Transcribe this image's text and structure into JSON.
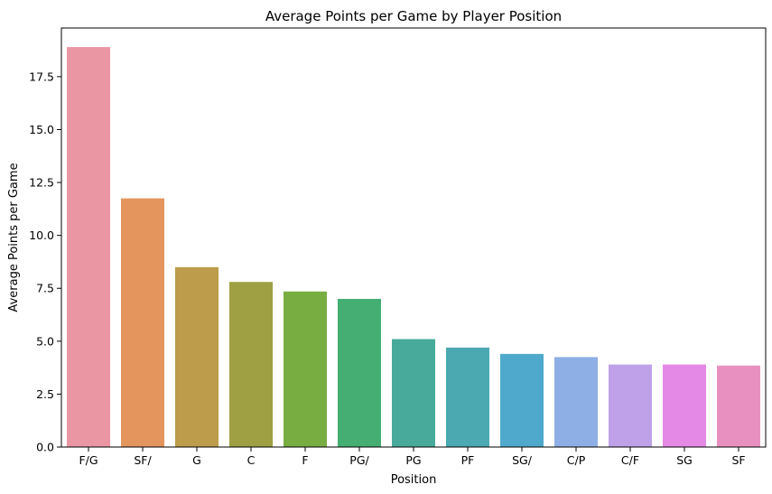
{
  "chart_data": {
    "type": "bar",
    "title": "Average Points per Game by Player Position",
    "xlabel": "Position",
    "ylabel": "Average Points per Game",
    "categories": [
      "F/G",
      "SF/",
      "G",
      "C",
      "F",
      "PG/",
      "PG",
      "PF",
      "SG/",
      "C/P",
      "C/F",
      "SG",
      "SF"
    ],
    "values": [
      18.9,
      11.75,
      8.5,
      7.8,
      7.35,
      7.0,
      5.1,
      4.7,
      4.4,
      4.25,
      3.9,
      3.9,
      3.85
    ],
    "colors": [
      "#ea96a3",
      "#e4955e",
      "#bd9d4b",
      "#9fa043",
      "#78ad42",
      "#45ae73",
      "#48aa9b",
      "#4aa9b1",
      "#4fa9cc",
      "#8eafe6",
      "#bfa1e9",
      "#e589e6",
      "#e891c1"
    ],
    "ylim": [
      0,
      19.8
    ],
    "yticks": [
      "0.0",
      "2.5",
      "5.0",
      "7.5",
      "10.0",
      "12.5",
      "15.0",
      "17.5"
    ],
    "grid": false,
    "legend": "none"
  }
}
